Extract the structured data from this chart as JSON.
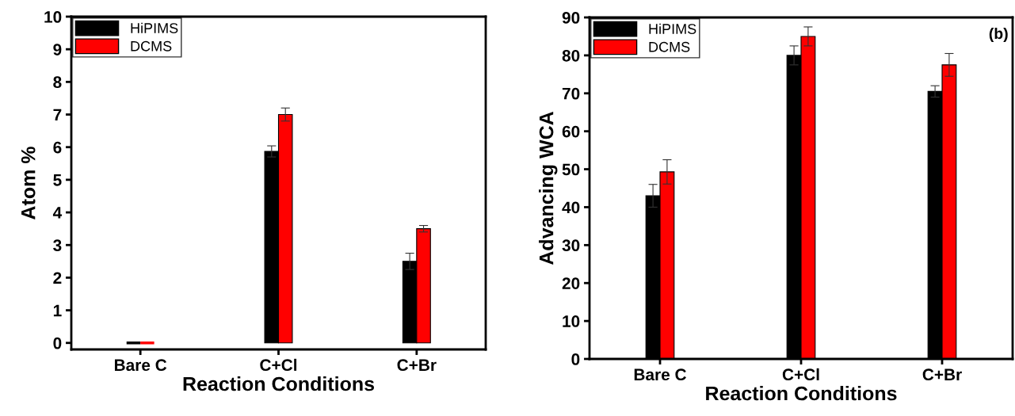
{
  "chart_data": [
    {
      "type": "bar",
      "categories": [
        "Bare C",
        "C+Cl",
        "C+Br"
      ],
      "xlabel": "Reaction Conditions",
      "ylabel": "Atom %",
      "series": [
        {
          "name": "HiPIMS",
          "color": "#000000",
          "values": [
            0,
            5.87,
            2.5
          ],
          "errors": [
            null,
            0.17,
            0.25
          ]
        },
        {
          "name": "DCMS",
          "color": "#ff0000",
          "values": [
            0,
            7.0,
            3.5
          ],
          "errors": [
            null,
            0.2,
            0.1
          ]
        }
      ],
      "ylim": [
        -0.2,
        10
      ],
      "yticks": [
        0,
        1,
        2,
        3,
        4,
        5,
        6,
        7,
        8,
        9,
        10
      ],
      "grid": false,
      "legend": "top left"
    },
    {
      "type": "bar",
      "categories": [
        "Bare C",
        "C+Cl",
        "C+Br"
      ],
      "xlabel": "Reaction Conditions",
      "ylabel": "Advancing WCA",
      "series": [
        {
          "name": "HiPIMS",
          "color": "#000000",
          "values": [
            43,
            80,
            70.5
          ],
          "errors": [
            3,
            2.5,
            1.5
          ]
        },
        {
          "name": "DCMS",
          "color": "#ff0000",
          "values": [
            49.3,
            85,
            77.5
          ],
          "errors": [
            3.2,
            2.5,
            3
          ]
        }
      ],
      "ylim": [
        0,
        90
      ],
      "yticks": [
        0,
        10,
        20,
        30,
        40,
        50,
        60,
        70,
        80,
        90
      ],
      "grid": false,
      "legend": "top left",
      "annotations": [
        "(b)"
      ]
    }
  ]
}
